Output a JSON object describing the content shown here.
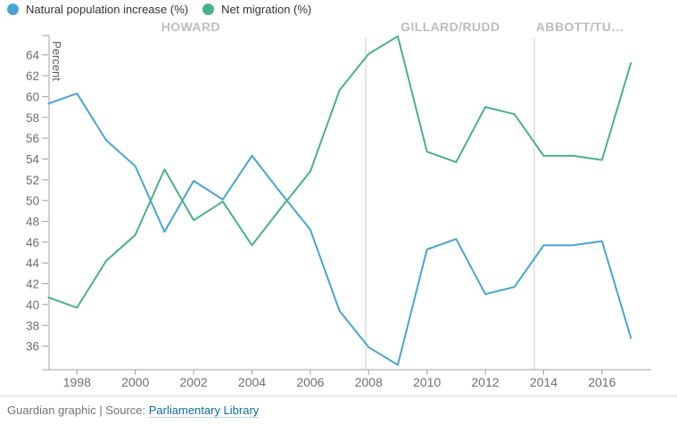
{
  "legend": {
    "items": [
      {
        "label": "Natural population increase (%)",
        "color": "#46a5d6",
        "icon": "blue-dot"
      },
      {
        "label": "Net migration (%)",
        "color": "#48b287",
        "icon": "green-dot"
      }
    ]
  },
  "chart_data": {
    "type": "line",
    "title": "",
    "ylabel": "Percent",
    "xlabel": "",
    "grid": false,
    "legend_position": "top-left",
    "ylim": [
      33.7,
      66
    ],
    "y_ticks": [
      36,
      38,
      40,
      42,
      44,
      46,
      48,
      50,
      52,
      54,
      56,
      58,
      60,
      62,
      64
    ],
    "x_ticks": [
      1998,
      2000,
      2002,
      2004,
      2006,
      2008,
      2010,
      2012,
      2014,
      2016
    ],
    "x": [
      1997,
      1998,
      1999,
      2000,
      2001,
      2002,
      2003,
      2004,
      2005,
      2006,
      2007,
      2008,
      2009,
      2010,
      2011,
      2012,
      2013,
      2014,
      2015,
      2016,
      2017
    ],
    "series": [
      {
        "name": "Natural population increase (%)",
        "color": "#46a5d6",
        "values": [
          59.3,
          60.3,
          55.8,
          53.3,
          47.0,
          51.9,
          50.1,
          54.3,
          50.7,
          47.2,
          39.4,
          35.9,
          34.2,
          45.3,
          46.3,
          41.0,
          41.7,
          45.7,
          45.7,
          46.1,
          36.7
        ]
      },
      {
        "name": "Net migration (%)",
        "color": "#48b287",
        "values": [
          40.7,
          39.7,
          44.2,
          46.7,
          53.0,
          48.1,
          49.9,
          45.7,
          49.3,
          52.8,
          60.6,
          64.1,
          65.8,
          54.7,
          53.7,
          59.0,
          58.3,
          54.3,
          54.3,
          53.9,
          63.3
        ]
      }
    ],
    "annotations": [
      {
        "label": "HOWARD",
        "year": 2001.9
      },
      {
        "label": "GILLARD/RUDD",
        "year": 2010.8
      },
      {
        "label": "ABBOTT/TU…",
        "year": 2015.25
      }
    ],
    "dividers": [
      {
        "year": 2007.9
      },
      {
        "year": 2013.68
      }
    ]
  },
  "colors": {
    "axis": "#a0a0a0",
    "tick_text": "#6f6f6f",
    "annotation": "#bdbdbd",
    "divider": "#cccccc",
    "legend_text": "#333333",
    "footer_text": "#737373",
    "link": "#0e6da8",
    "rule": "#dcdcdc",
    "background": "#ffffff"
  },
  "footer": {
    "credit_prefix": "Guardian graphic | Source: ",
    "link_label": "Parliamentary Library"
  }
}
